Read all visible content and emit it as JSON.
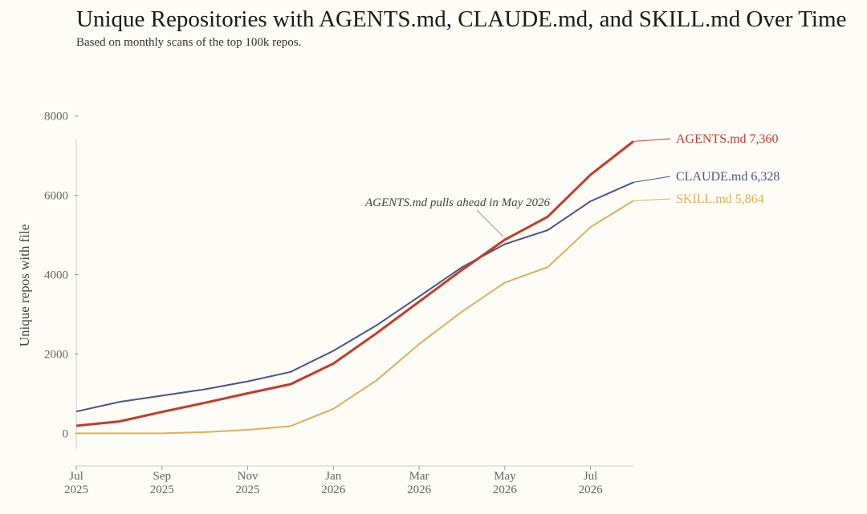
{
  "chart_data": {
    "type": "line",
    "title": "Unique Repositories with AGENTS.md, CLAUDE.md, and SKILL.md Over Time",
    "subtitle": "Based on monthly scans of the top 100k repos.",
    "ylabel": "Unique repos with file",
    "xlabel": "",
    "x": [
      "2025-07",
      "2025-08",
      "2025-09",
      "2025-10",
      "2025-11",
      "2025-12",
      "2026-01",
      "2026-02",
      "2026-03",
      "2026-04",
      "2026-05",
      "2026-06",
      "2026-07",
      "2026-08"
    ],
    "ylim": [
      -800,
      8600
    ],
    "yticks": [
      "8000",
      "6000",
      "4000",
      "2000",
      "0"
    ],
    "xticks": [
      {
        "x": "2025-07",
        "month": "Jul",
        "year": "2025"
      },
      {
        "x": "2025-09",
        "month": "Sep",
        "year": "2025"
      },
      {
        "x": "2025-11",
        "month": "Nov",
        "year": "2025"
      },
      {
        "x": "2026-01",
        "month": "Jan",
        "year": "2026"
      },
      {
        "x": "2026-03",
        "month": "Mar",
        "year": "2026"
      },
      {
        "x": "2026-05",
        "month": "May",
        "year": "2026"
      },
      {
        "x": "2026-07",
        "month": "Jul",
        "year": "2026"
      }
    ],
    "grid": false,
    "series": [
      {
        "name": "SKILL.md",
        "color": "#e0ae55",
        "values": [
          0,
          0,
          0,
          30,
          90,
          180,
          620,
          1330,
          2250,
          3070,
          3800,
          4190,
          5200,
          5864
        ],
        "label": "SKILL.md 5,864"
      },
      {
        "name": "CLAUDE.md",
        "color": "#485585",
        "values": [
          550,
          790,
          950,
          1110,
          1310,
          1550,
          2080,
          2720,
          3450,
          4190,
          4770,
          5120,
          5850,
          6328
        ],
        "label": "CLAUDE.md 6,328"
      },
      {
        "name": "AGENTS.md",
        "color": "#c63a29",
        "values": [
          190,
          300,
          540,
          770,
          1010,
          1240,
          1760,
          2520,
          3320,
          4120,
          4880,
          5460,
          6520,
          7360
        ],
        "label": "AGENTS.md 7,360"
      }
    ],
    "annotation": {
      "text": "AGENTS.md pulls ahead in May 2026",
      "x": "2026-05",
      "y": 4880
    }
  }
}
